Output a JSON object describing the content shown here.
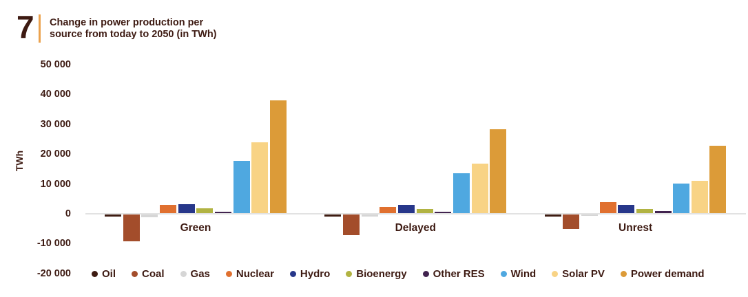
{
  "header": {
    "figure_number": "7",
    "title_line1": "Change in power production per",
    "title_line2": "source from today to 2050 (in TWh)"
  },
  "chart_data": {
    "type": "bar",
    "title": "Change in power production per source from today to 2050 (in TWh)",
    "ylabel": "TWh",
    "ylim": [
      -20000,
      50000
    ],
    "y_ticks": [
      50000,
      40000,
      30000,
      20000,
      10000,
      0,
      -10000,
      -20000
    ],
    "y_tick_labels": [
      "50 000",
      "40 000",
      "30 000",
      "20 000",
      "10 000",
      "0",
      "-10 000",
      "-20 000"
    ],
    "categories": [
      "Green",
      "Delayed",
      "Unrest"
    ],
    "series": [
      {
        "name": "Oil",
        "color": "#3E1C12",
        "values": [
          -700,
          -600,
          -600
        ]
      },
      {
        "name": "Coal",
        "color": "#A34D2B",
        "values": [
          -8900,
          -6800,
          -4900
        ]
      },
      {
        "name": "Gas",
        "color": "#D6D6D6",
        "values": [
          -1000,
          -700,
          -400
        ]
      },
      {
        "name": "Nuclear",
        "color": "#E0702F",
        "values": [
          2700,
          2100,
          3800
        ]
      },
      {
        "name": "Hydro",
        "color": "#27378A",
        "values": [
          3000,
          2700,
          2800
        ]
      },
      {
        "name": "Bioenergy",
        "color": "#B1B342",
        "values": [
          1500,
          1300,
          1300
        ]
      },
      {
        "name": "Other RES",
        "color": "#41234F",
        "values": [
          500,
          500,
          600
        ]
      },
      {
        "name": "Wind",
        "color": "#4FA8E0",
        "values": [
          17600,
          13400,
          10000
        ]
      },
      {
        "name": "Solar PV",
        "color": "#F8D385",
        "values": [
          23700,
          16500,
          10800
        ]
      },
      {
        "name": "Power demand",
        "color": "#DC9B38",
        "values": [
          37900,
          28200,
          22500
        ]
      }
    ],
    "legend_position": "bottom",
    "grid": false
  },
  "colors": {
    "text": "#3D1A12",
    "accent_line": "#EBA24E",
    "axis_line": "#E2E2E2",
    "background": "#FFFFFF"
  }
}
